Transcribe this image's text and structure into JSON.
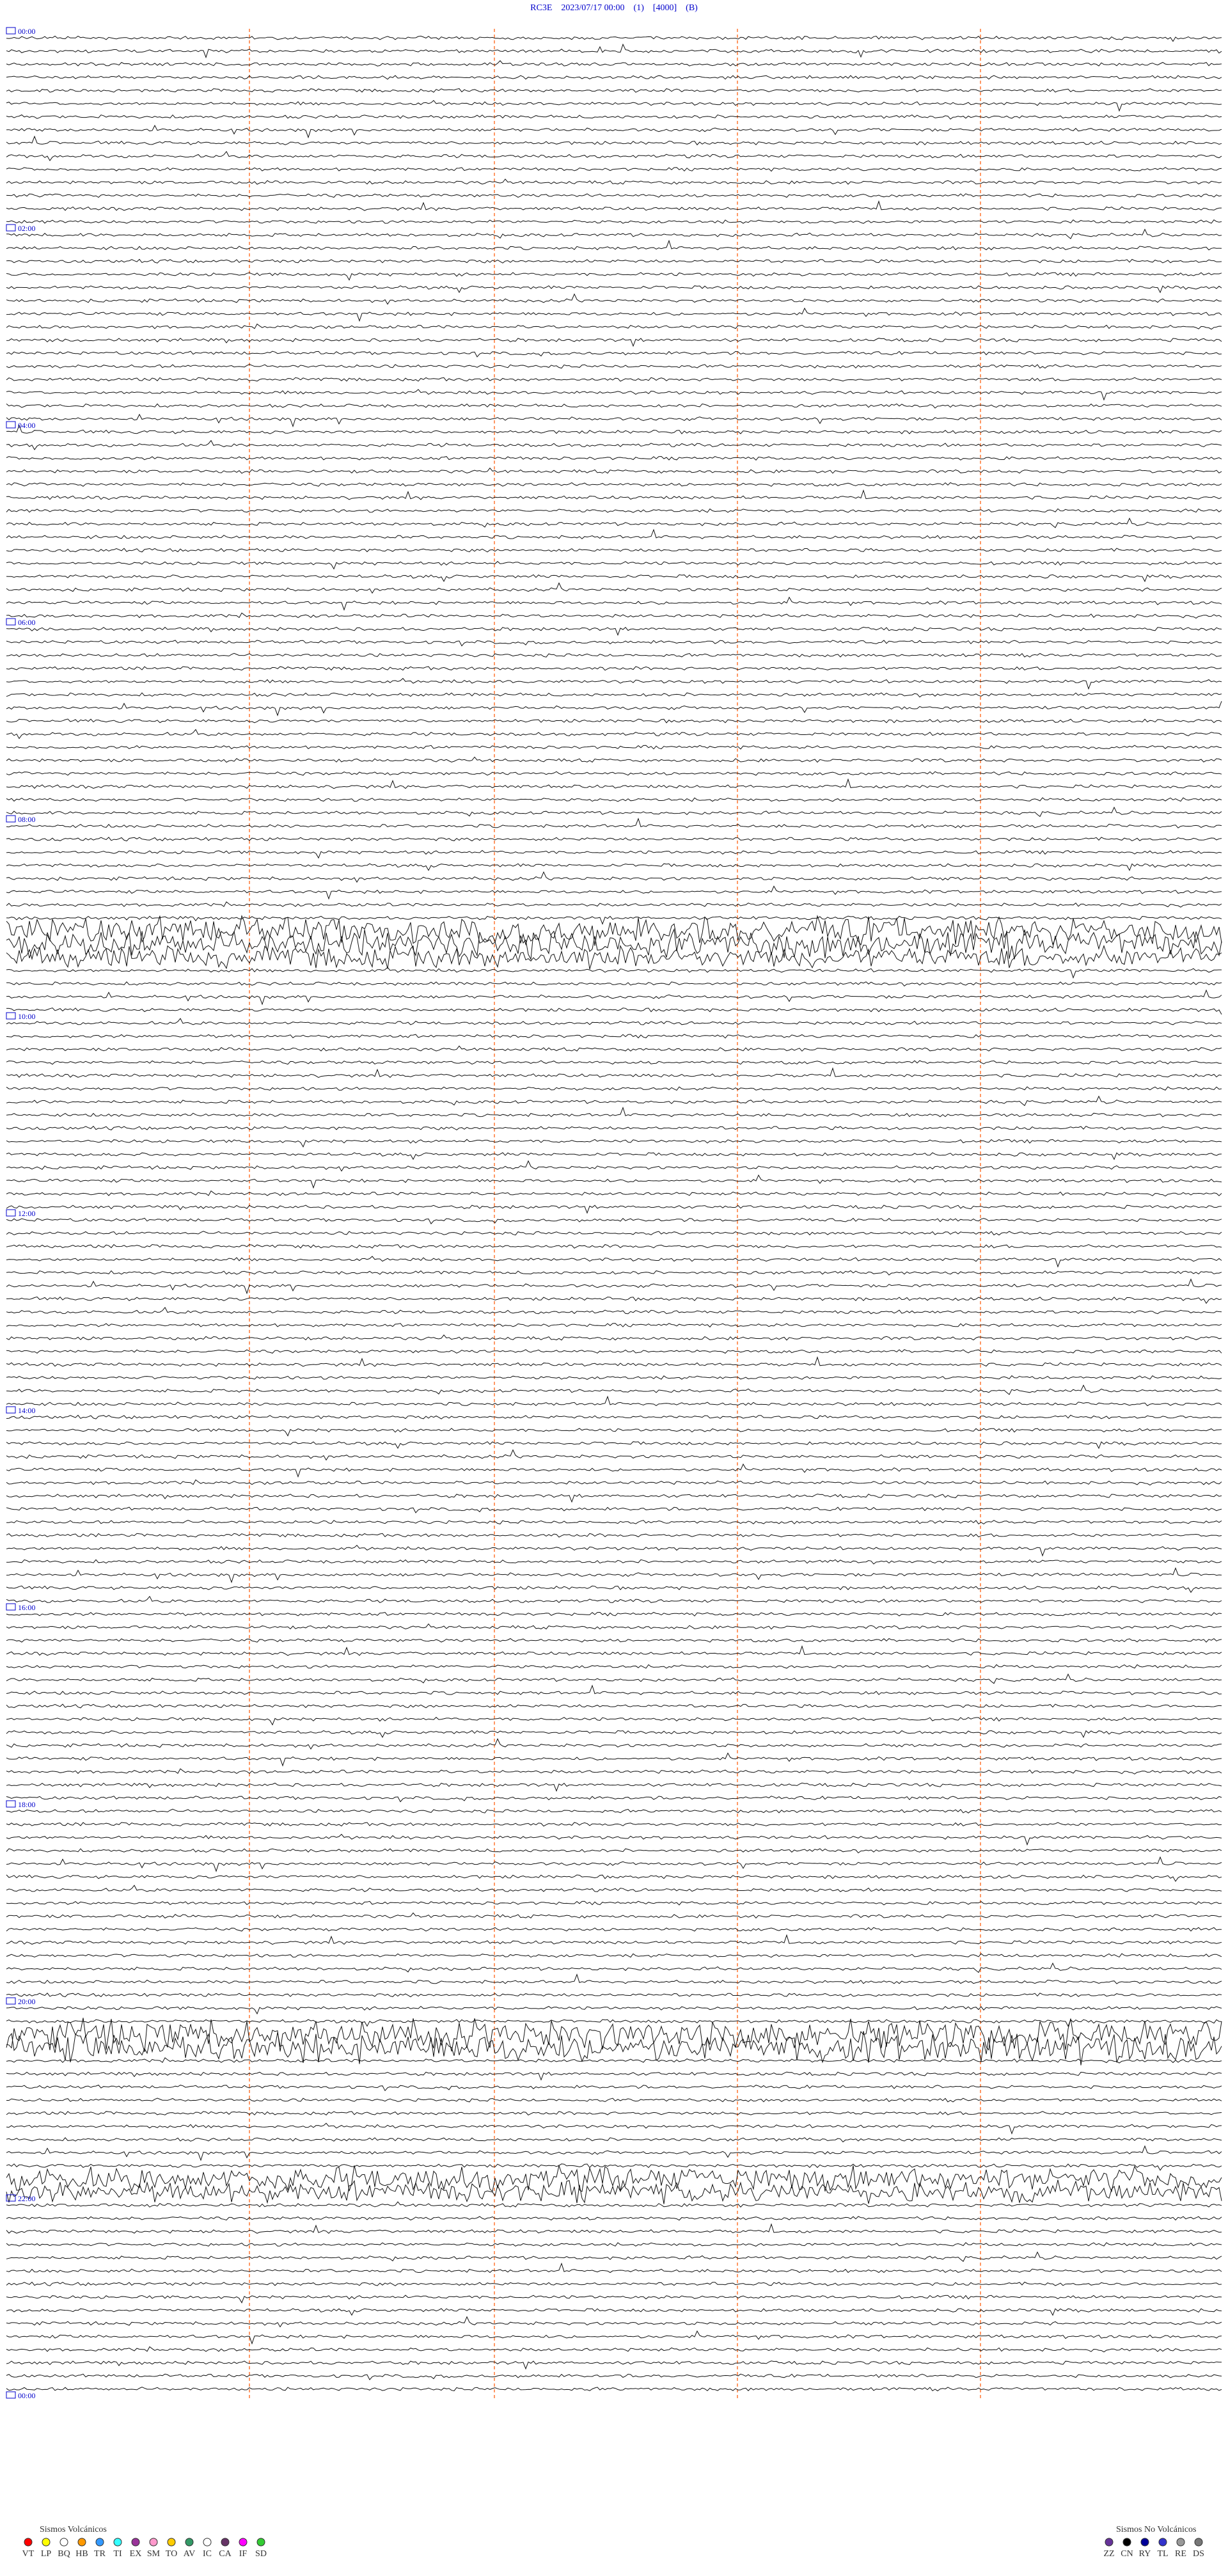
{
  "header": {
    "title": "RC3E    2023/07/17 00:00    (1)    [4000]    (B)"
  },
  "time_labels": [
    "00:00",
    "02:00",
    "04:00",
    "06:00",
    "08:00",
    "10:00",
    "12:00",
    "14:00",
    "16:00",
    "18:00",
    "20:00",
    "22:00",
    "00:00"
  ],
  "legend": {
    "volcanic": {
      "title": "Sismos Volcánicos",
      "items": [
        {
          "label": "VT",
          "color": "#ff0000"
        },
        {
          "label": "LP",
          "color": "#ffff00"
        },
        {
          "label": "BQ",
          "color": "#ffffff"
        },
        {
          "label": "HB",
          "color": "#ff9900"
        },
        {
          "label": "TR",
          "color": "#3399ff"
        },
        {
          "label": "TI",
          "color": "#33ffff"
        },
        {
          "label": "EX",
          "color": "#993399"
        },
        {
          "label": "SM",
          "color": "#ff99cc"
        },
        {
          "label": "TO",
          "color": "#ffcc00"
        },
        {
          "label": "AV",
          "color": "#339966"
        },
        {
          "label": "IC",
          "color": "#ffffff"
        },
        {
          "label": "CA",
          "color": "#663366"
        },
        {
          "label": "IF",
          "color": "#ff00ff"
        },
        {
          "label": "SD",
          "color": "#33cc33"
        }
      ]
    },
    "non_volcanic": {
      "title": "Sismos No Volcánicos",
      "items": [
        {
          "label": "ZZ",
          "color": "#663399"
        },
        {
          "label": "CN",
          "color": "#000000"
        },
        {
          "label": "RY",
          "color": "#000099"
        },
        {
          "label": "TL",
          "color": "#3333cc"
        },
        {
          "label": "RE",
          "color": "#999999"
        },
        {
          "label": "DS",
          "color": "#777777"
        }
      ]
    }
  }
}
